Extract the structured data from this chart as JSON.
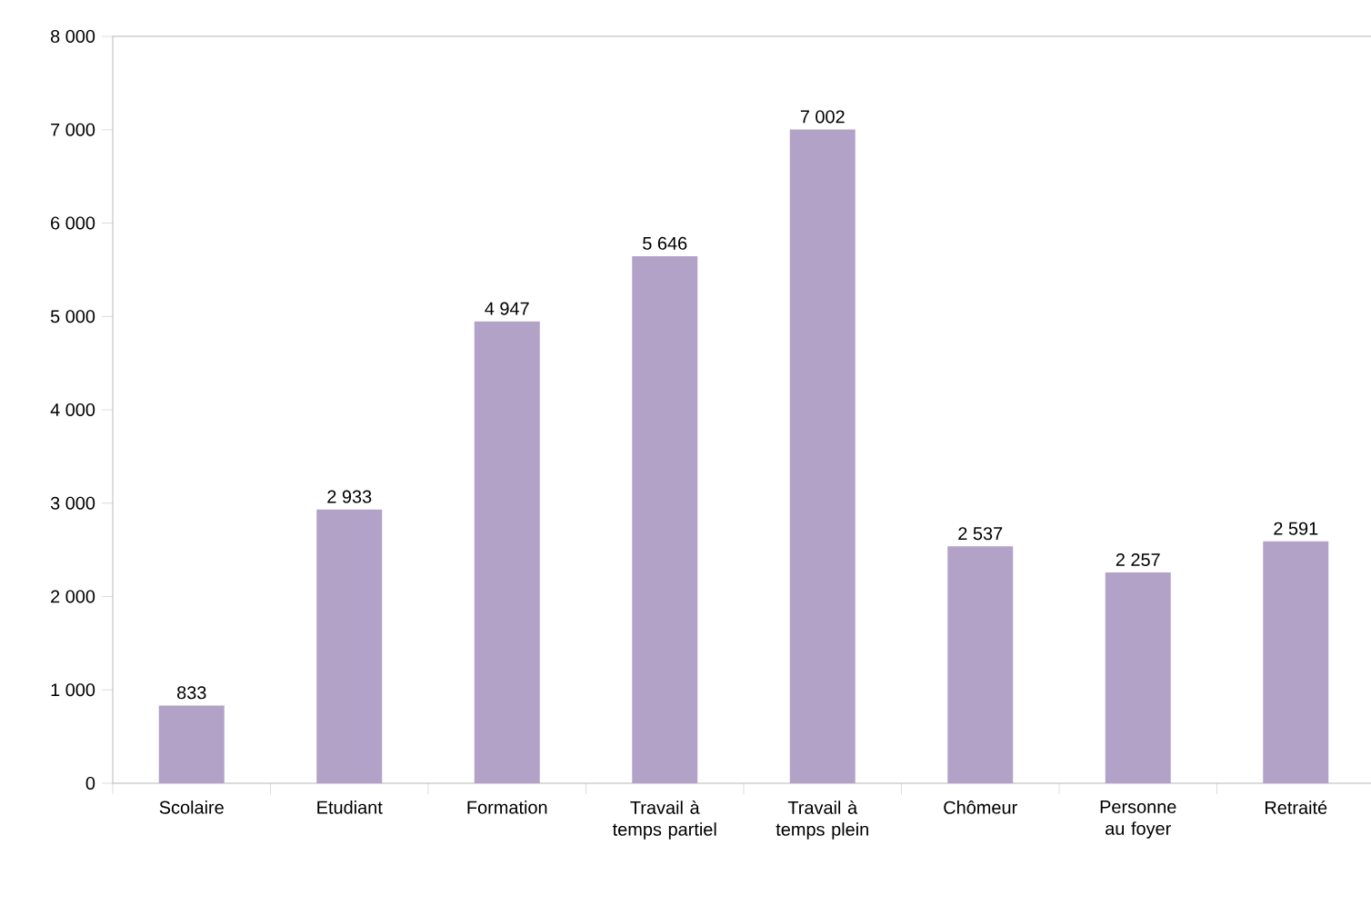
{
  "chart_data": {
    "type": "bar",
    "categories": [
      "Scolaire",
      "Etudiant",
      "Formation",
      "Travail à temps partiel",
      "Travail à temps plein",
      "Chômeur",
      "Personne au foyer",
      "Retraité"
    ],
    "values": [
      833,
      2933,
      4947,
      5646,
      7002,
      2537,
      2257,
      2591
    ],
    "value_labels": [
      "833",
      "2 933",
      "4 947",
      "5 646",
      "7 002",
      "2 537",
      "2 257",
      "2 591"
    ],
    "color": "#b3a2c7",
    "ylim": [
      0,
      8000
    ],
    "yticks": [
      0,
      {
        "value": 1000,
        "label": "1 000"
      },
      {
        "value": 2000,
        "label": "2 000"
      },
      {
        "value": 3000,
        "label": "3 000"
      },
      {
        "value": 4000,
        "label": "4 000"
      },
      {
        "value": 5000,
        "label": "5 000"
      },
      {
        "value": 6000,
        "label": "6 000"
      },
      {
        "value": 7000,
        "label": "7 000"
      },
      {
        "value": 8000,
        "label": "8 000"
      }
    ],
    "grid": false
  }
}
